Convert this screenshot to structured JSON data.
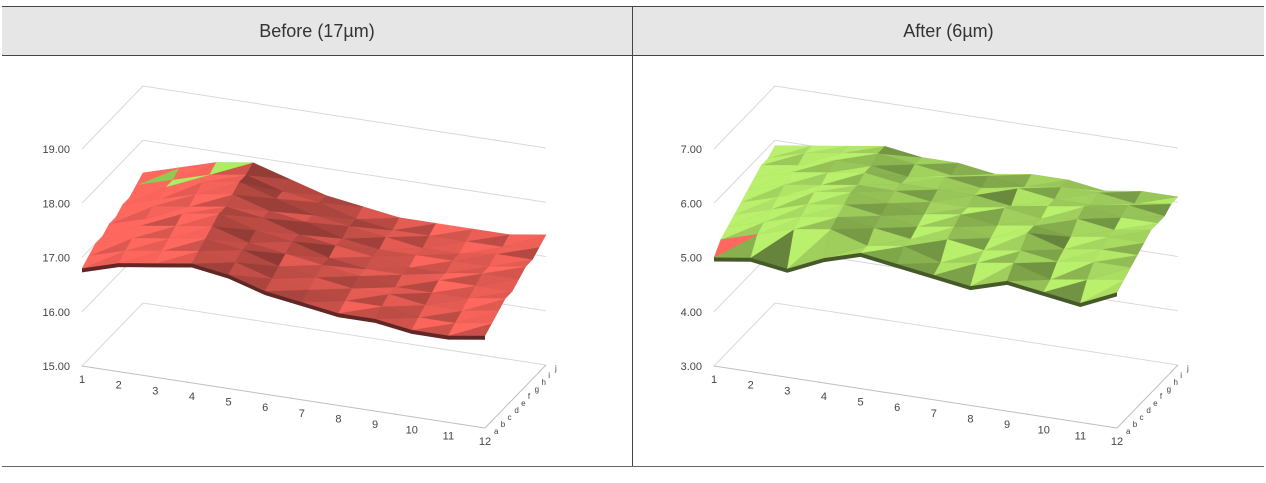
{
  "headers": {
    "before": "Before (17µm)",
    "after": "After (6µm)"
  },
  "chart_data": [
    {
      "type": "surface",
      "title": "Before (17µm)",
      "x_categories": [
        "1",
        "2",
        "3",
        "4",
        "5",
        "6",
        "7",
        "8",
        "9",
        "10",
        "11",
        "12"
      ],
      "y_categories": [
        "a",
        "b",
        "c",
        "d",
        "e",
        "f",
        "g",
        "h",
        "i",
        "j"
      ],
      "z_ticks": [
        "15.00",
        "16.00",
        "17.00",
        "18.00",
        "19.00"
      ],
      "zlim": [
        15,
        19
      ],
      "color": "#d9574f",
      "accent_color": "#8fc652",
      "z": [
        [
          16.8,
          17.0,
          17.1,
          17.2,
          17.1,
          16.9,
          16.8,
          16.7,
          16.7,
          16.6,
          16.6,
          16.7
        ],
        [
          16.9,
          17.1,
          17.2,
          17.3,
          17.2,
          17.0,
          16.9,
          16.8,
          16.8,
          16.7,
          16.7,
          16.8
        ],
        [
          17.0,
          17.2,
          17.3,
          17.4,
          17.3,
          17.1,
          17.0,
          16.9,
          16.9,
          16.8,
          16.8,
          16.9
        ],
        [
          17.0,
          17.3,
          17.4,
          17.5,
          17.3,
          17.2,
          17.1,
          17.0,
          16.9,
          16.9,
          16.9,
          17.0
        ],
        [
          17.1,
          17.3,
          17.5,
          17.6,
          17.4,
          17.3,
          17.1,
          17.0,
          17.0,
          17.0,
          17.0,
          17.0
        ],
        [
          17.1,
          17.4,
          17.5,
          17.6,
          17.5,
          17.3,
          17.2,
          17.1,
          17.0,
          17.0,
          17.1,
          17.1
        ],
        [
          17.2,
          17.4,
          17.6,
          17.7,
          17.5,
          17.4,
          17.2,
          17.1,
          17.1,
          17.1,
          17.1,
          17.2
        ],
        [
          17.2,
          17.5,
          17.7,
          17.8,
          17.6,
          17.4,
          17.3,
          17.2,
          17.1,
          17.1,
          17.2,
          17.2
        ],
        [
          17.3,
          17.5,
          17.7,
          17.8,
          17.6,
          17.5,
          17.3,
          17.2,
          17.2,
          17.2,
          17.2,
          17.3
        ],
        [
          17.4,
          17.6,
          17.8,
          17.9,
          17.7,
          17.5,
          17.4,
          17.3,
          17.3,
          17.3,
          17.3,
          17.4
        ]
      ]
    },
    {
      "type": "surface",
      "title": "After (6µm)",
      "x_categories": [
        "1",
        "2",
        "3",
        "4",
        "5",
        "6",
        "7",
        "8",
        "9",
        "10",
        "11",
        "12"
      ],
      "y_categories": [
        "a",
        "b",
        "c",
        "d",
        "e",
        "f",
        "g",
        "h",
        "i",
        "j"
      ],
      "z_ticks": [
        "3.00",
        "4.00",
        "5.00",
        "6.00",
        "7.00"
      ],
      "zlim": [
        3,
        7
      ],
      "color": "#9bc95a",
      "accent_color": "#d9574f",
      "z": [
        [
          5.0,
          5.1,
          5.0,
          5.3,
          5.5,
          5.4,
          5.3,
          5.2,
          5.4,
          5.3,
          5.2,
          5.5
        ],
        [
          5.2,
          5.4,
          5.6,
          5.7,
          5.5,
          5.6,
          5.4,
          5.5,
          5.6,
          5.4,
          5.5,
          5.6
        ],
        [
          5.3,
          5.5,
          5.7,
          5.8,
          5.7,
          5.6,
          5.7,
          5.6,
          5.7,
          5.6,
          5.7,
          5.7
        ],
        [
          5.4,
          5.6,
          5.8,
          5.9,
          5.8,
          5.7,
          5.8,
          5.7,
          5.9,
          5.7,
          5.8,
          5.8
        ],
        [
          5.5,
          5.7,
          5.9,
          6.0,
          5.9,
          5.8,
          5.9,
          5.8,
          5.9,
          5.8,
          5.9,
          5.9
        ],
        [
          5.6,
          5.8,
          5.9,
          6.0,
          6.0,
          5.9,
          5.9,
          6.0,
          5.9,
          6.0,
          5.9,
          6.0
        ],
        [
          5.7,
          5.9,
          6.0,
          6.1,
          6.0,
          6.0,
          6.0,
          5.9,
          6.0,
          6.1,
          6.0,
          6.0
        ],
        [
          5.8,
          5.9,
          6.1,
          6.1,
          6.0,
          6.1,
          6.0,
          6.1,
          6.0,
          6.0,
          6.1,
          6.0
        ],
        [
          5.8,
          6.0,
          6.1,
          6.2,
          6.1,
          6.0,
          6.1,
          6.0,
          6.1,
          6.1,
          6.0,
          6.1
        ],
        [
          5.9,
          6.0,
          6.1,
          6.2,
          6.1,
          6.1,
          6.0,
          6.1,
          6.1,
          6.0,
          6.1,
          6.1
        ]
      ]
    }
  ]
}
